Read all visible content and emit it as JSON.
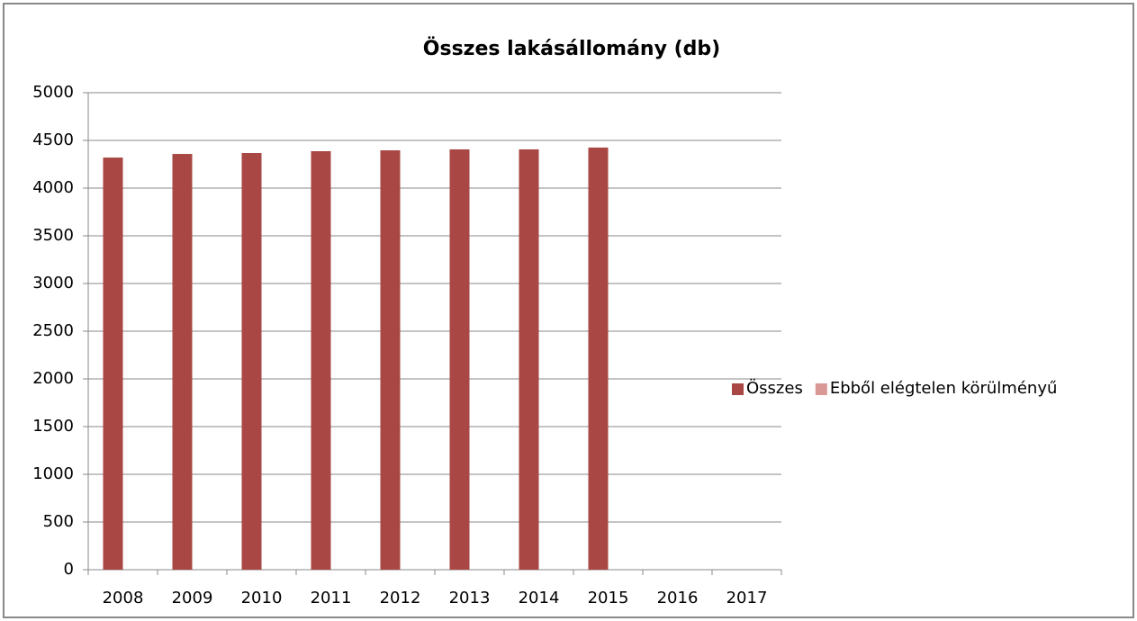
{
  "chart_data": {
    "type": "bar",
    "title": "Összes lakásállomány (db)",
    "categories": [
      "2008",
      "2009",
      "2010",
      "2011",
      "2012",
      "2013",
      "2014",
      "2015",
      "2016",
      "2017"
    ],
    "series": [
      {
        "name": "Összes",
        "color": "#a94744",
        "values": [
          4320,
          4358,
          4368,
          4387,
          4396,
          4406,
          4406,
          4425,
          null,
          null
        ]
      },
      {
        "name": "Ebből elégtelen körülményű",
        "color": "#d99795",
        "values": [
          null,
          null,
          null,
          null,
          null,
          null,
          null,
          null,
          null,
          null
        ]
      }
    ],
    "ylim": [
      0,
      5000
    ],
    "yticks": [
      0,
      500,
      1000,
      1500,
      2000,
      2500,
      3000,
      3500,
      4000,
      4500,
      5000
    ],
    "grid": true,
    "legend": "right"
  }
}
